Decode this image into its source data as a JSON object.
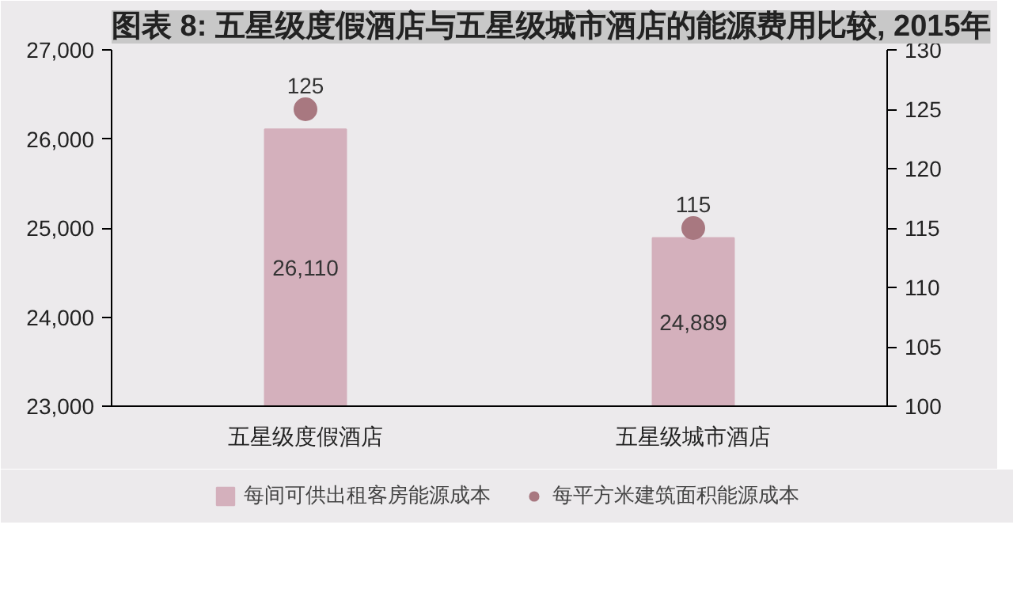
{
  "chart_data": {
    "type": "bar",
    "title": "图表 8: 五星级度假酒店与五星级城市酒店的能源费用比较, 2015年",
    "categories": [
      "五星级度假酒店",
      "五星级城市酒店"
    ],
    "series": [
      {
        "name": "每间可供出租客房能源成本",
        "color": "#d4b0bc",
        "values": [
          26110,
          24889
        ],
        "value_labels": [
          "26,110",
          "24,889"
        ]
      },
      {
        "name": "每平方米建筑面积能源成本",
        "type": "scatter",
        "axis": "y2",
        "color": "#a87880",
        "values": [
          125,
          115
        ],
        "value_labels": [
          "125",
          "115"
        ]
      }
    ],
    "ylim": [
      23000,
      27000
    ],
    "yticks": [
      {
        "value": 23000,
        "label": "23,000"
      },
      {
        "value": 24000,
        "label": "24,000"
      },
      {
        "value": 25000,
        "label": "25,000"
      },
      {
        "value": 26000,
        "label": "26,000"
      },
      {
        "value": 27000,
        "label": "27,000"
      }
    ],
    "y2lim": [
      100,
      130
    ],
    "y2ticks": [
      100,
      105,
      110,
      115,
      120,
      125,
      130
    ],
    "grid": false,
    "legend": "bottom",
    "marker": "circle"
  }
}
